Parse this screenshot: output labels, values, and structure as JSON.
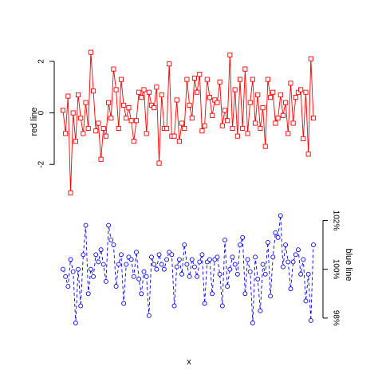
{
  "chart_data": [
    {
      "type": "line",
      "xlabel": "x",
      "ylabel": "red line",
      "ylim": [
        -3.2,
        2.4
      ],
      "yticks": [
        "2",
        "0",
        "-2"
      ],
      "ytick_values": [
        2,
        0,
        -2
      ],
      "axis_side": "left",
      "color": "#ff0000",
      "marker": "square",
      "line_style": "solid",
      "values": [
        0.1,
        -0.8,
        0.65,
        -3.1,
        0.0,
        -1.1,
        0.7,
        -0.2,
        -0.8,
        0.4,
        -0.6,
        2.35,
        0.85,
        -0.7,
        -0.4,
        -1.8,
        -0.6,
        -0.9,
        0.4,
        -0.2,
        1.7,
        0.9,
        -0.6,
        1.3,
        0.3,
        -0.2,
        0.2,
        -0.3,
        -1.1,
        -0.3,
        0.8,
        0.6,
        0.9,
        -0.8,
        0.8,
        0.3,
        0.2,
        1.0,
        -1.95,
        0.7,
        -0.6,
        -0.6,
        1.9,
        -0.9,
        -0.9,
        0.5,
        -1.1,
        -0.4,
        -0.6,
        1.3,
        0.3,
        -0.2,
        1.35,
        0.8,
        1.5,
        -0.7,
        -0.5,
        1.3,
        0.6,
        -0.1,
        0.5,
        0.4,
        1.2,
        -0.5,
        0.1,
        -0.3,
        2.25,
        -0.6,
        0.9,
        -0.9,
        1.3,
        -0.6,
        1.7,
        -0.8,
        0.4,
        1.3,
        -0.4,
        0.7,
        -0.6,
        0.2,
        -1.3,
        1.3,
        0.6,
        0.8,
        -0.4,
        -0.2,
        0.7,
        -0.1,
        0.4,
        -0.8,
        1.15,
        -0.4,
        0.6,
        0.8,
        0.9,
        -1.0,
        0.8,
        -1.6,
        2.1,
        -0.2
      ]
    },
    {
      "type": "line",
      "xlabel": "x",
      "ylabel": "blue line",
      "ylim": [
        0.978,
        1.027
      ],
      "yticks": [
        "98%",
        "100%",
        "102%"
      ],
      "ytick_values": [
        0.98,
        1.0,
        1.02
      ],
      "axis_side": "right",
      "color": "#0000ff",
      "marker": "circle",
      "line_style": "dashed",
      "values": [
        1.0,
        0.997,
        0.993,
        1.004,
        0.999,
        0.978,
        1.0,
        0.985,
        1.006,
        1.018,
        0.99,
        1.0,
        0.997,
        1.006,
        1.003,
        1.008,
        1.002,
        0.995,
        1.018,
        1.012,
        1.01,
        0.993,
        1.002,
        1.006,
        0.986,
        1.002,
        1.005,
        1.004,
        0.997,
        1.007,
        0.996,
        0.99,
        0.999,
        0.997,
        0.981,
        1.005,
        1.002,
        1.0,
        1.006,
        1.002,
        1.0,
        1.004,
        1.007,
        1.006,
        0.985,
        1.001,
        1.004,
        0.998,
        1.01,
        1.002,
        0.997,
        1.004,
        1.001,
        0.997,
        1.003,
        1.006,
        0.986,
        1.003,
        1.004,
        0.99,
        1.004,
        1.005,
        0.998,
        0.985,
        1.012,
        0.993,
        1.0,
        1.005,
        1.002,
        0.998,
        1.01,
        1.013,
        0.99,
        1.004,
        0.999,
        0.978,
        1.005,
        0.996,
        0.983,
        1.002,
        0.998,
        1.011,
        0.989,
        1.005,
        1.015,
        1.013,
        1.022,
        1.001,
        1.01,
        1.003,
        0.992,
        1.003,
        1.006,
        1.008,
        0.998,
        1.004,
        0.987,
        0.998,
        0.979,
        1.01
      ]
    }
  ]
}
